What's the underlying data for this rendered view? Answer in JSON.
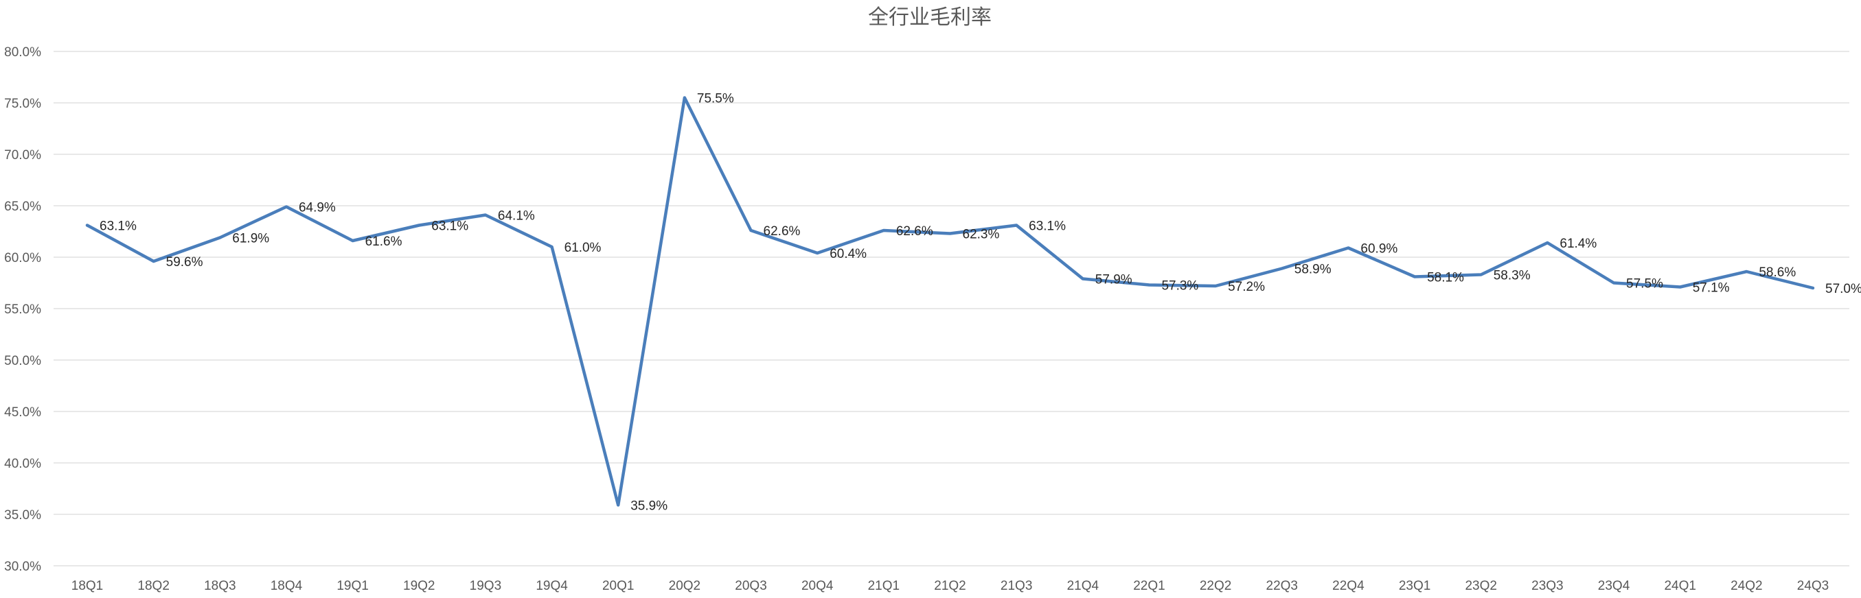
{
  "chart_data": {
    "type": "line",
    "title": "全行业毛利率",
    "xlabel": "",
    "ylabel": "",
    "ylim": [
      30,
      80
    ],
    "yticks": [
      "30.0%",
      "35.0%",
      "40.0%",
      "45.0%",
      "50.0%",
      "55.0%",
      "60.0%",
      "65.0%",
      "70.0%",
      "75.0%",
      "80.0%"
    ],
    "categories": [
      "18Q1",
      "18Q2",
      "18Q3",
      "18Q4",
      "19Q1",
      "19Q2",
      "19Q3",
      "19Q4",
      "20Q1",
      "20Q2",
      "20Q3",
      "20Q4",
      "21Q1",
      "21Q2",
      "21Q3",
      "21Q4",
      "22Q1",
      "22Q2",
      "22Q3",
      "22Q4",
      "23Q1",
      "23Q2",
      "23Q3",
      "23Q4",
      "24Q1",
      "24Q2",
      "24Q3"
    ],
    "series": [
      {
        "color": "#4a7ebb",
        "values": [
          63.1,
          59.6,
          61.9,
          64.9,
          61.6,
          63.1,
          64.1,
          61.0,
          35.9,
          75.5,
          62.6,
          60.4,
          62.6,
          62.3,
          63.1,
          57.9,
          57.3,
          57.2,
          58.9,
          60.9,
          58.1,
          58.3,
          61.4,
          57.5,
          57.1,
          58.6,
          57.0
        ],
        "data_labels": [
          "63.1%",
          "59.6%",
          "61.9%",
          "64.9%",
          "61.6%",
          "63.1%",
          "64.1%",
          "61.0%",
          "35.9%",
          "75.5%",
          "62.6%",
          "60.4%",
          "62.6%",
          "62.3%",
          "63.1%",
          "57.9%",
          "57.3%",
          "57.2%",
          "58.9%",
          "60.9%",
          "58.1%",
          "58.3%",
          "61.4%",
          "57.5%",
          "57.1%",
          "58.6%",
          "57.0%"
        ]
      }
    ],
    "grid": true,
    "legend": "none"
  }
}
